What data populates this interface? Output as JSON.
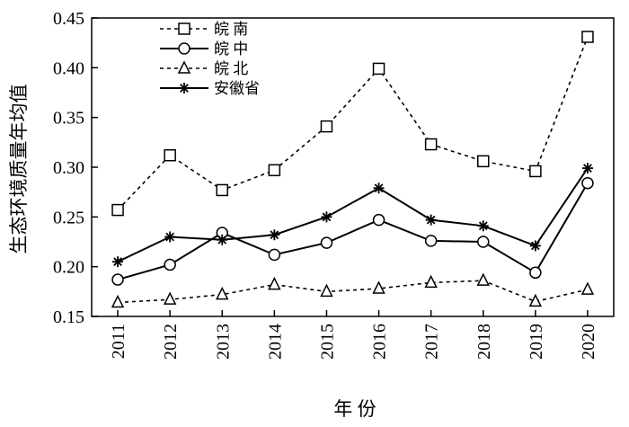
{
  "chart_data": {
    "type": "line",
    "title": "",
    "xlabel": "年 份",
    "ylabel": "生态环境质量年均值",
    "categories": [
      "2011",
      "2012",
      "2013",
      "2014",
      "2015",
      "2016",
      "2017",
      "2018",
      "2019",
      "2020"
    ],
    "ylim": [
      0.15,
      0.45
    ],
    "yticks": [
      "0.15",
      "0.20",
      "0.25",
      "0.30",
      "0.35",
      "0.40",
      "0.45"
    ],
    "grid": false,
    "legend_position": "top-left",
    "series": [
      {
        "name": "皖 南",
        "style": "dashed",
        "marker": "square",
        "values": [
          0.257,
          0.312,
          0.277,
          0.297,
          0.341,
          0.399,
          0.323,
          0.306,
          0.296,
          0.431
        ]
      },
      {
        "name": "皖 中",
        "style": "solid",
        "marker": "circle",
        "values": [
          0.187,
          0.202,
          0.234,
          0.212,
          0.224,
          0.247,
          0.226,
          0.225,
          0.194,
          0.284
        ]
      },
      {
        "name": "皖 北",
        "style": "dashed",
        "marker": "triangle",
        "values": [
          0.164,
          0.167,
          0.172,
          0.182,
          0.175,
          0.178,
          0.184,
          0.186,
          0.165,
          0.177
        ]
      },
      {
        "name": "安徽省",
        "style": "solid",
        "marker": "star",
        "values": [
          0.205,
          0.23,
          0.227,
          0.232,
          0.25,
          0.279,
          0.247,
          0.241,
          0.221,
          0.299
        ]
      }
    ]
  }
}
